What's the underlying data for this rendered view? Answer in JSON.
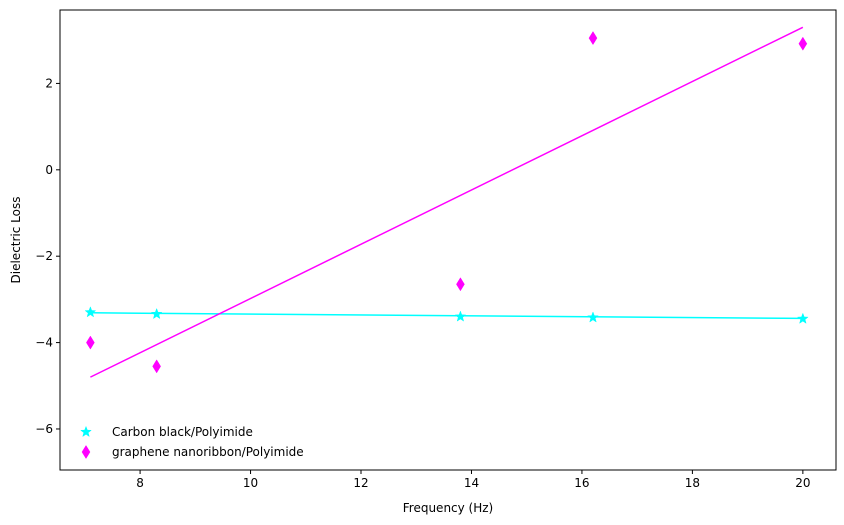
{
  "chart_data": {
    "type": "scatter",
    "xlabel": "Frequency (Hz)",
    "ylabel": "Dielectric Loss",
    "xlim": [
      6.55,
      20.6
    ],
    "ylim": [
      -6.95,
      3.7
    ],
    "xticks": [
      8,
      10,
      12,
      14,
      16,
      18,
      20
    ],
    "yticks": [
      -6,
      -4,
      -2,
      0,
      2
    ],
    "grid": false,
    "legend_position": "lower-left",
    "series": [
      {
        "name": "Carbon black/Polyimide",
        "marker": "star",
        "color": "#00ffff",
        "x": [
          7.1,
          8.3,
          13.8,
          16.2,
          20.0
        ],
        "y": [
          -3.3,
          -3.34,
          -3.4,
          -3.42,
          -3.45
        ],
        "fit": {
          "x": [
            7.1,
            20.0
          ],
          "y": [
            -3.31,
            -3.44
          ]
        }
      },
      {
        "name": "graphene nanoribbon/Polyimide",
        "marker": "thin-diamond",
        "color": "#ff00ff",
        "x": [
          7.1,
          8.3,
          13.8,
          16.2,
          20.0
        ],
        "y": [
          -4.0,
          -4.55,
          -2.65,
          3.05,
          2.92
        ],
        "fit": {
          "x": [
            7.1,
            20.0
          ],
          "y": [
            -4.8,
            3.3
          ]
        }
      }
    ]
  }
}
